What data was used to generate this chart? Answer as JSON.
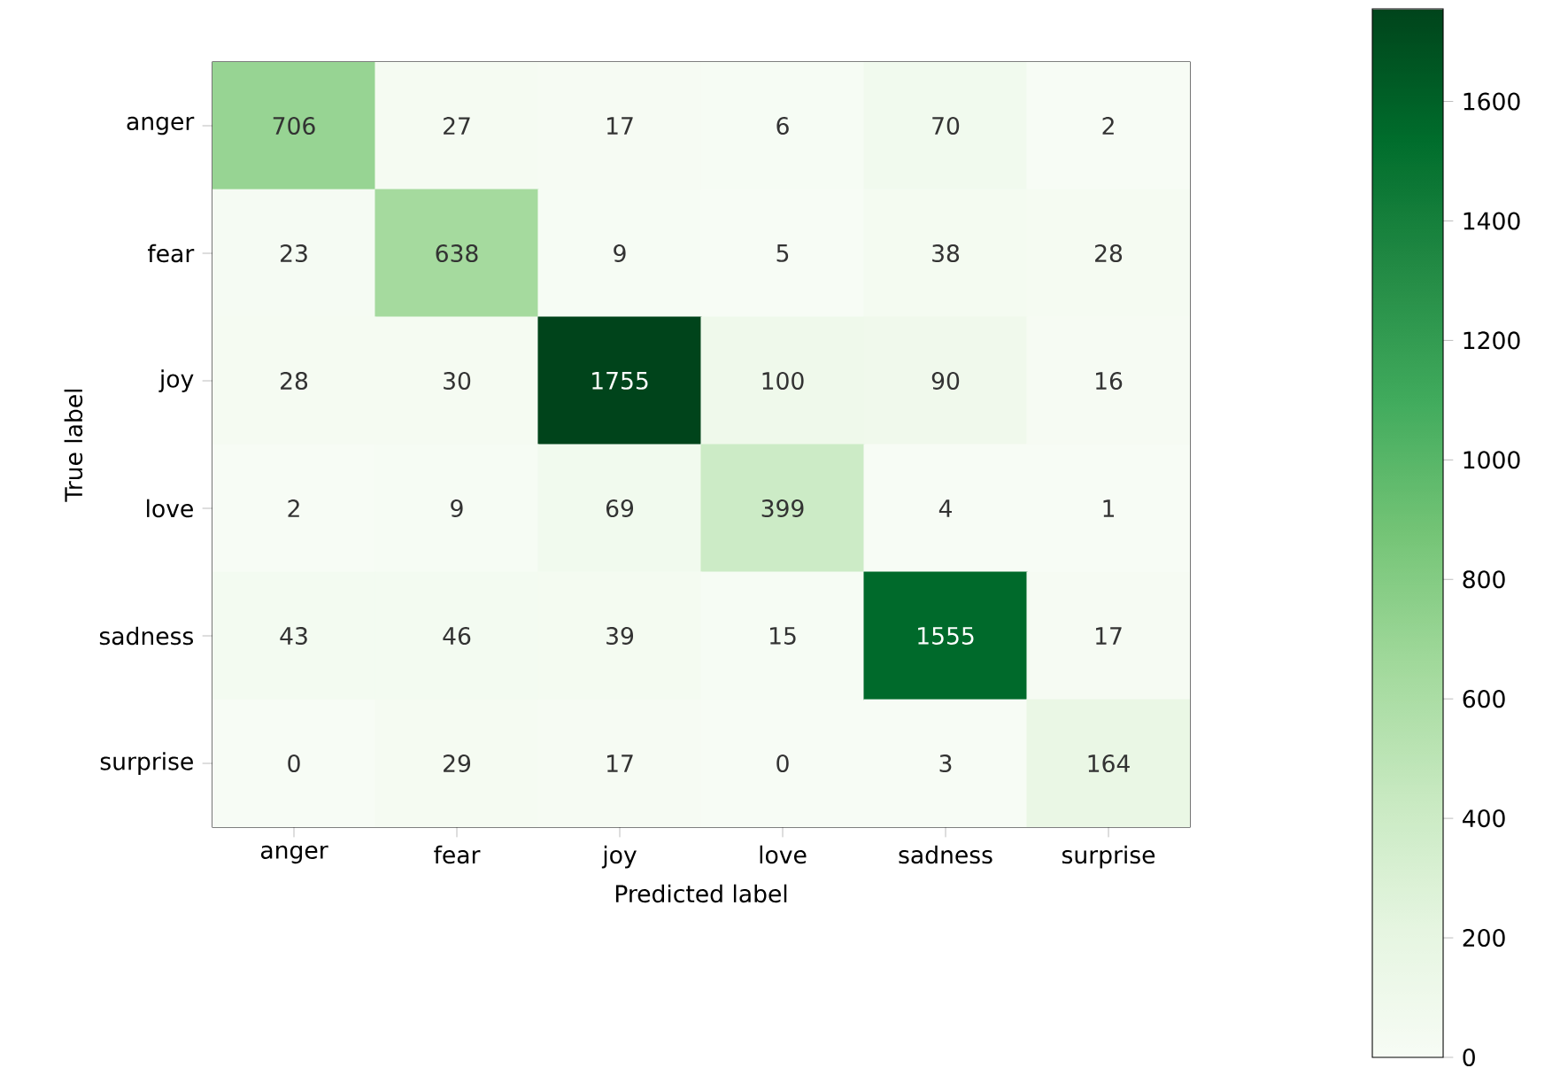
{
  "chart_data": {
    "type": "heatmap",
    "xlabel": "Predicted label",
    "ylabel": "True label",
    "categories": [
      "anger",
      "fear",
      "joy",
      "love",
      "sadness",
      "surprise"
    ],
    "y_categories": [
      "anger",
      "fear",
      "joy",
      "love",
      "sadness",
      "surprise"
    ],
    "cells": [
      [
        706,
        27,
        17,
        6,
        70,
        2
      ],
      [
        23,
        638,
        9,
        5,
        38,
        28
      ],
      [
        28,
        30,
        1755,
        100,
        90,
        16
      ],
      [
        2,
        9,
        69,
        399,
        4,
        1
      ],
      [
        43,
        46,
        39,
        15,
        1555,
        17
      ],
      [
        0,
        29,
        17,
        0,
        3,
        164
      ]
    ],
    "data_labels": true,
    "clim": [
      0,
      1755
    ],
    "cticks": [
      0,
      200,
      400,
      600,
      800,
      1000,
      1200,
      1400,
      1600
    ]
  }
}
